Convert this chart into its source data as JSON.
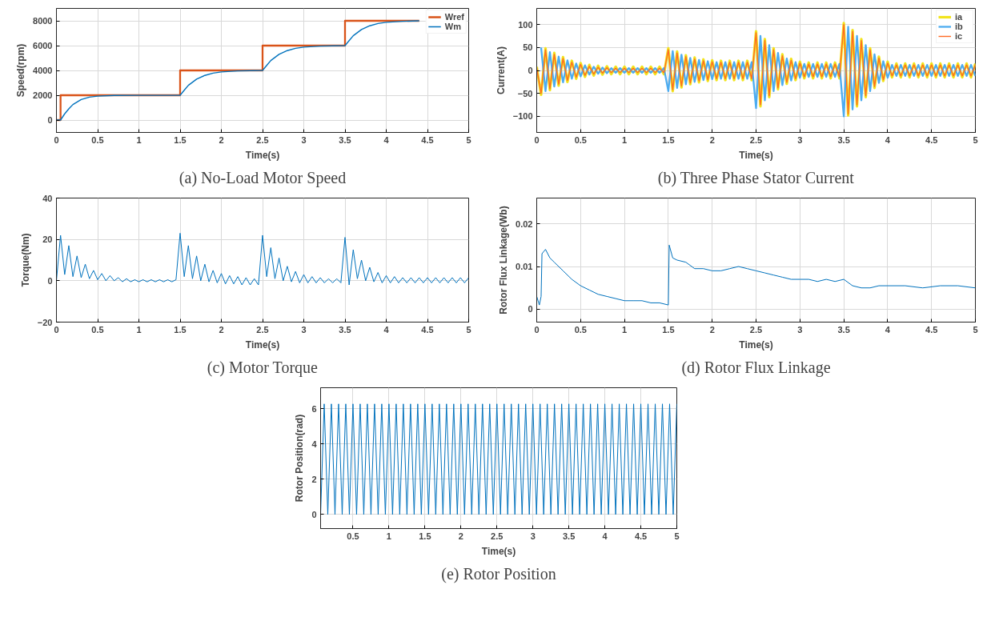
{
  "chart_data": [
    {
      "type": "line",
      "title": "(a) No-Load Motor Speed",
      "xlabel": "Time(s)",
      "ylabel": "Speed(rpm)",
      "xlim": [
        0,
        5
      ],
      "ylim": [
        -1000,
        9000
      ],
      "xticks": [
        0,
        0.5,
        1,
        1.5,
        2,
        2.5,
        3,
        3.5,
        4,
        4.5,
        5
      ],
      "yticks": [
        0,
        2000,
        4000,
        6000,
        8000
      ],
      "grid": true,
      "legend": "top right",
      "series": [
        {
          "name": "Wref",
          "color": "#d95319",
          "x": [
            0,
            0.05,
            0.05,
            1.5,
            1.5,
            2.5,
            2.5,
            3.5,
            3.5,
            4.4
          ],
          "values": [
            0,
            0,
            2000,
            2000,
            4000,
            4000,
            6000,
            6000,
            8000,
            8000
          ]
        },
        {
          "name": "Wm",
          "color": "#0072bd",
          "x": [
            0,
            0.05,
            0.1,
            0.15,
            0.2,
            0.3,
            0.4,
            0.5,
            0.7,
            1,
            1.5,
            1.55,
            1.6,
            1.7,
            1.8,
            1.9,
            2,
            2.2,
            2.5,
            2.55,
            2.6,
            2.7,
            2.8,
            2.9,
            3,
            3.2,
            3.5,
            3.55,
            3.6,
            3.7,
            3.8,
            3.9,
            4,
            4.2,
            4.4
          ],
          "values": [
            0,
            0,
            500,
            900,
            1250,
            1650,
            1850,
            1930,
            1980,
            1990,
            2000,
            2400,
            2800,
            3300,
            3600,
            3780,
            3880,
            3960,
            4000,
            4400,
            4800,
            5300,
            5600,
            5780,
            5880,
            5960,
            6000,
            6400,
            6800,
            7300,
            7600,
            7780,
            7880,
            7960,
            8000
          ]
        }
      ]
    },
    {
      "type": "line",
      "title": "(b) Three Phase Stator Current",
      "xlabel": "Time(s)",
      "ylabel": "Current(A)",
      "xlim": [
        0,
        5
      ],
      "ylim": [
        -135,
        135
      ],
      "xticks": [
        0,
        0.5,
        1,
        1.5,
        2,
        2.5,
        3,
        3.5,
        4,
        4.5,
        5
      ],
      "yticks": [
        -100,
        -50,
        0,
        50,
        100
      ],
      "grid": true,
      "legend": "top right",
      "x": [
        0,
        0.05,
        0.1,
        0.15,
        0.2,
        0.25,
        0.3,
        0.35,
        0.4,
        0.45,
        0.5,
        0.55,
        0.6,
        0.65,
        0.7,
        0.75,
        0.8,
        0.85,
        0.9,
        0.95,
        1,
        1.05,
        1.1,
        1.15,
        1.2,
        1.25,
        1.3,
        1.35,
        1.4,
        1.45,
        1.5,
        1.55,
        1.6,
        1.65,
        1.7,
        1.75,
        1.8,
        1.85,
        1.9,
        1.95,
        2,
        2.05,
        2.1,
        2.15,
        2.2,
        2.25,
        2.3,
        2.35,
        2.4,
        2.45,
        2.5,
        2.55,
        2.6,
        2.65,
        2.7,
        2.75,
        2.8,
        2.85,
        2.9,
        2.95,
        3,
        3.05,
        3.1,
        3.15,
        3.2,
        3.25,
        3.3,
        3.35,
        3.4,
        3.45,
        3.5,
        3.55,
        3.6,
        3.65,
        3.7,
        3.75,
        3.8,
        3.85,
        3.9,
        3.95,
        4,
        4.05,
        4.1,
        4.15,
        4.2,
        4.25,
        4.3,
        4.35,
        4.4,
        4.45,
        4.5,
        4.55,
        4.6,
        4.65,
        4.7,
        4.75,
        4.8,
        4.85,
        4.9,
        4.95,
        5
      ],
      "series": [
        {
          "name": "ia",
          "color": "#f2e41d",
          "values": [
            8,
            -53,
            48,
            -43,
            38,
            -33,
            29,
            -25,
            21,
            -18,
            16,
            -14,
            12,
            -11,
            10,
            -9,
            9,
            -8,
            8,
            -8,
            8,
            -8,
            8,
            -8,
            8,
            -8,
            8,
            -8,
            8,
            -8,
            48,
            -45,
            41,
            -37,
            33,
            -30,
            28,
            -26,
            24,
            -23,
            22,
            -21,
            21,
            -21,
            21,
            -21,
            21,
            -21,
            21,
            -21,
            85,
            -78,
            68,
            -58,
            48,
            -41,
            35,
            -29,
            25,
            -21,
            19,
            -17,
            17,
            -17,
            17,
            -17,
            17,
            -17,
            17,
            -17,
            103,
            -98,
            88,
            -78,
            68,
            -58,
            48,
            -38,
            30,
            -23,
            19,
            -15,
            15,
            -15,
            15,
            -15,
            15,
            -15,
            15,
            -15,
            15,
            -15,
            15,
            -15,
            15,
            -15,
            15,
            -15,
            15,
            -15,
            15
          ]
        },
        {
          "name": "ib",
          "color": "#4dacf0",
          "values": [
            null,
            50,
            -45,
            40,
            -35,
            30,
            -26,
            22,
            -18,
            15,
            -13,
            11,
            -9,
            8,
            -7,
            6,
            -6,
            5,
            -5,
            5,
            -5,
            5,
            -5,
            5,
            -5,
            5,
            -5,
            5,
            -5,
            5,
            -45,
            42,
            -38,
            34,
            -30,
            27,
            -25,
            23,
            -21,
            20,
            -19,
            18,
            -18,
            18,
            -18,
            18,
            -18,
            18,
            -18,
            18,
            -82,
            75,
            -65,
            55,
            -45,
            38,
            -32,
            26,
            -22,
            18,
            -16,
            14,
            -14,
            14,
            -14,
            14,
            -14,
            14,
            -14,
            14,
            -100,
            95,
            -85,
            75,
            -65,
            55,
            -45,
            35,
            -27,
            20,
            -16,
            12,
            -12,
            12,
            -12,
            12,
            -12,
            12,
            -12,
            12,
            -12,
            12,
            -12,
            12,
            -12,
            12,
            -12,
            12,
            -12,
            12,
            -12
          ]
        },
        {
          "name": "ic",
          "color": "#ff6b24",
          "values": [
            5,
            -50,
            45,
            -40,
            35,
            -30,
            26,
            -22,
            18,
            -15,
            13,
            -11,
            9,
            -8,
            7,
            -6,
            6,
            -5,
            5,
            -5,
            5,
            -5,
            5,
            -5,
            5,
            -5,
            5,
            -5,
            5,
            -5,
            45,
            -42,
            38,
            -34,
            30,
            -27,
            25,
            -23,
            21,
            -20,
            19,
            -18,
            18,
            -18,
            18,
            -18,
            18,
            -18,
            18,
            -18,
            82,
            -75,
            65,
            -55,
            45,
            -38,
            32,
            -26,
            22,
            -18,
            16,
            -14,
            14,
            -14,
            14,
            -14,
            14,
            -14,
            14,
            -14,
            100,
            -95,
            85,
            -75,
            65,
            -55,
            45,
            -35,
            27,
            -20,
            16,
            -12,
            12,
            -12,
            12,
            -12,
            12,
            -12,
            12,
            -12,
            12,
            -12,
            12,
            -12,
            12,
            -12,
            12,
            -12,
            12,
            -12,
            12
          ]
        }
      ]
    },
    {
      "type": "line",
      "title": "(c) Motor Torque",
      "xlabel": "Time(s)",
      "ylabel": "Torque(Nm)",
      "xlim": [
        0,
        5
      ],
      "ylim": [
        -20,
        40
      ],
      "xticks": [
        0,
        0.5,
        1,
        1.5,
        2,
        2.5,
        3,
        3.5,
        4,
        4.5,
        5
      ],
      "yticks": [
        -20,
        0,
        20,
        40
      ],
      "grid": true,
      "x": [
        0,
        0.05,
        0.1,
        0.15,
        0.2,
        0.25,
        0.3,
        0.35,
        0.4,
        0.45,
        0.5,
        0.55,
        0.6,
        0.65,
        0.7,
        0.75,
        0.8,
        0.85,
        0.9,
        0.95,
        1,
        1.05,
        1.1,
        1.15,
        1.2,
        1.25,
        1.3,
        1.35,
        1.4,
        1.45,
        1.5,
        1.55,
        1.6,
        1.65,
        1.7,
        1.75,
        1.8,
        1.85,
        1.9,
        1.95,
        2,
        2.05,
        2.1,
        2.15,
        2.2,
        2.25,
        2.3,
        2.35,
        2.4,
        2.45,
        2.5,
        2.55,
        2.6,
        2.65,
        2.7,
        2.75,
        2.8,
        2.85,
        2.9,
        2.95,
        3,
        3.05,
        3.1,
        3.15,
        3.2,
        3.25,
        3.3,
        3.35,
        3.4,
        3.45,
        3.5,
        3.55,
        3.6,
        3.65,
        3.7,
        3.75,
        3.8,
        3.85,
        3.9,
        3.95,
        4,
        4.05,
        4.1,
        4.15,
        4.2,
        4.25,
        4.3,
        4.35,
        4.4,
        4.45,
        4.5,
        4.55,
        4.6,
        4.65,
        4.7,
        4.75,
        4.8,
        4.85,
        4.9,
        4.95,
        5
      ],
      "series": [
        {
          "color": "#0072bd",
          "values": [
            0,
            22,
            3,
            17,
            2,
            12,
            1.5,
            8,
            1,
            5,
            0.5,
            3.5,
            0,
            2.5,
            0,
            1.5,
            -0.5,
            1,
            -0.5,
            0.5,
            -0.5,
            0.5,
            -0.5,
            0.5,
            -0.5,
            0.5,
            -0.5,
            0.5,
            -0.5,
            0.5,
            23,
            2,
            17,
            1,
            12,
            0,
            8,
            -0.5,
            5,
            -1,
            3.5,
            -1.5,
            2.5,
            -1.5,
            2,
            -2,
            1.5,
            -2,
            1,
            -2,
            22,
            2,
            16,
            1,
            11,
            0,
            7,
            -0.5,
            4.5,
            -1,
            3,
            -1,
            2,
            -1,
            1.5,
            -1,
            1,
            -1,
            1,
            -1,
            21,
            -2,
            15,
            1,
            10,
            0,
            6.5,
            -0.5,
            4,
            -1,
            2.5,
            -1,
            2,
            -1,
            1.5,
            -1,
            1.5,
            -1,
            1.5,
            -1,
            1.5,
            -1,
            1.5,
            -1,
            1.5,
            -1,
            1.5,
            -1,
            1.5,
            -1,
            1.5
          ]
        }
      ]
    },
    {
      "type": "line",
      "title": "(d) Rotor Flux Linkage",
      "xlabel": "Time(s)",
      "ylabel": "Rotor Flux Linkage(Wb)",
      "xlim": [
        0,
        5
      ],
      "ylim": [
        -0.003,
        0.026
      ],
      "xticks": [
        0,
        0.5,
        1,
        1.5,
        2,
        2.5,
        3,
        3.5,
        4,
        4.5,
        5
      ],
      "yticks": [
        0,
        0.01,
        0.02
      ],
      "grid": true,
      "series": [
        {
          "color": "#0072bd",
          "x": [
            0,
            0.03,
            0.05,
            0.06,
            0.1,
            0.15,
            0.2,
            0.3,
            0.4,
            0.5,
            0.6,
            0.7,
            0.8,
            0.9,
            1,
            1.1,
            1.2,
            1.3,
            1.4,
            1.5,
            1.51,
            1.55,
            1.6,
            1.7,
            1.8,
            1.9,
            2,
            2.1,
            2.2,
            2.3,
            2.4,
            2.5,
            2.6,
            2.7,
            2.8,
            2.9,
            3,
            3.1,
            3.2,
            3.3,
            3.4,
            3.5,
            3.6,
            3.7,
            3.8,
            3.9,
            4,
            4.2,
            4.4,
            4.6,
            4.8,
            5
          ],
          "values": [
            0.003,
            0.001,
            0.003,
            0.013,
            0.014,
            0.012,
            0.011,
            0.009,
            0.007,
            0.0055,
            0.0045,
            0.0035,
            0.003,
            0.0025,
            0.002,
            0.002,
            0.002,
            0.0015,
            0.0015,
            0.001,
            0.015,
            0.012,
            0.0115,
            0.011,
            0.0095,
            0.0095,
            0.009,
            0.009,
            0.0095,
            0.01,
            0.0095,
            0.009,
            0.0085,
            0.008,
            0.0075,
            0.007,
            0.007,
            0.007,
            0.0065,
            0.007,
            0.0065,
            0.007,
            0.0055,
            0.005,
            0.005,
            0.0055,
            0.0055,
            0.0055,
            0.005,
            0.0055,
            0.0055,
            0.005
          ]
        }
      ]
    },
    {
      "type": "line",
      "title": "(e) Rotor Position",
      "xlabel": "Time(s)",
      "ylabel": "Rotor Position(rad)",
      "xlim": [
        0.05,
        5
      ],
      "ylim": [
        -0.8,
        7.2
      ],
      "xticks": [
        0.5,
        1,
        1.5,
        2,
        2.5,
        3,
        3.5,
        4,
        4.5,
        5
      ],
      "yticks": [
        0,
        2,
        4,
        6
      ],
      "grid": true,
      "series": [
        {
          "color": "#0072bd",
          "x": [
            0.05,
            0.1,
            0.15,
            0.2,
            0.25,
            0.3,
            0.35,
            0.4,
            0.45,
            0.5,
            0.55,
            0.6,
            0.65,
            0.7,
            0.75,
            0.8,
            0.85,
            0.9,
            0.95,
            1,
            1.05,
            1.1,
            1.15,
            1.2,
            1.25,
            1.3,
            1.35,
            1.4,
            1.45,
            1.5,
            1.55,
            1.6,
            1.65,
            1.7,
            1.75,
            1.8,
            1.85,
            1.9,
            1.95,
            2,
            2.05,
            2.1,
            2.15,
            2.2,
            2.25,
            2.3,
            2.35,
            2.4,
            2.45,
            2.5,
            2.55,
            2.6,
            2.65,
            2.7,
            2.75,
            2.8,
            2.85,
            2.9,
            2.95,
            3,
            3.05,
            3.1,
            3.15,
            3.2,
            3.25,
            3.3,
            3.35,
            3.4,
            3.45,
            3.5,
            3.55,
            3.6,
            3.65,
            3.7,
            3.75,
            3.8,
            3.85,
            3.9,
            3.95,
            4,
            4.05,
            4.1,
            4.15,
            4.2,
            4.25,
            4.3,
            4.35,
            4.4,
            4.45,
            4.5,
            4.55,
            4.6,
            4.65,
            4.7,
            4.75,
            4.8,
            4.85,
            4.9,
            4.95,
            5
          ],
          "values": [
            0,
            6.28,
            0,
            6.28,
            0,
            6.28,
            0,
            6.28,
            0,
            6.28,
            0,
            6.28,
            0,
            6.28,
            0,
            6.28,
            0,
            6.28,
            0,
            6.28,
            0,
            6.28,
            0,
            6.28,
            0,
            6.28,
            0,
            6.28,
            0,
            6.28,
            0,
            6.28,
            0,
            6.28,
            0,
            6.28,
            0,
            6.28,
            0,
            6.28,
            0,
            6.28,
            0,
            6.28,
            0,
            6.28,
            0,
            6.28,
            0,
            6.28,
            0,
            6.28,
            0,
            6.28,
            0,
            6.28,
            0,
            6.28,
            0,
            6.28,
            0,
            6.28,
            0,
            6.28,
            0,
            6.28,
            0,
            6.28,
            0,
            6.28,
            0,
            6.28,
            0,
            6.28,
            0,
            6.28,
            0,
            6.28,
            0,
            6.28,
            0,
            6.28,
            0,
            6.28,
            0,
            6.28,
            0,
            6.28,
            0,
            6.28,
            0,
            6.28,
            0,
            6.28,
            0,
            6.28,
            0,
            6.28,
            0,
            6.28
          ]
        }
      ]
    }
  ]
}
